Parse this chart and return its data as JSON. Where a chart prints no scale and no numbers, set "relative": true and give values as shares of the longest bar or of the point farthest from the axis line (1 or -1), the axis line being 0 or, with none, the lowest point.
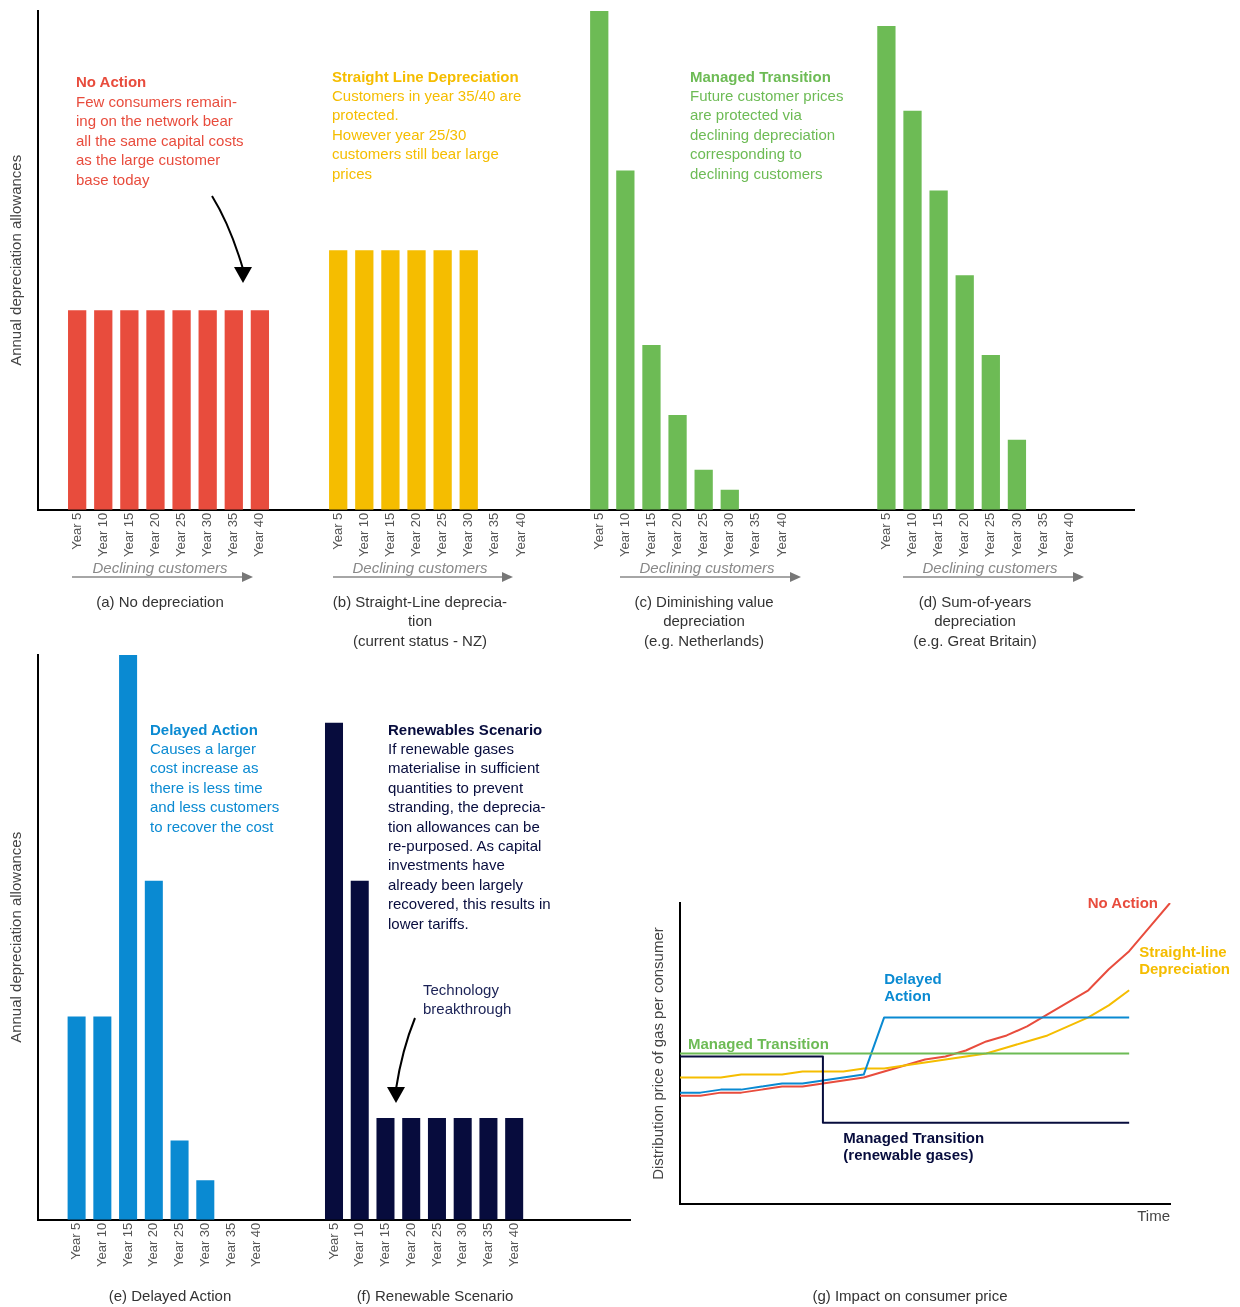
{
  "chart_data": [
    {
      "type": "bar",
      "relative": true,
      "ylabel": "Annual depreciation allowances",
      "tick_labels": "x",
      "legend": false,
      "categories": [
        null,
        "Year 5",
        "Year 10",
        "Year 15",
        "Year 20",
        "Year 25",
        "Year 30",
        "Year 35",
        "Year 40",
        null,
        null,
        "Year 5",
        "Year 10",
        "Year 15",
        "Year 20",
        "Year 25",
        "Year 30",
        "Year 35",
        "Year 40",
        null,
        null,
        "Year 5",
        "Year 10",
        "Year 15",
        "Year 20",
        "Year 25",
        "Year 30",
        "Year 35",
        "Year 40",
        null,
        null,
        null,
        "Year 5",
        "Year 10",
        "Year 15",
        "Year 20",
        "Year 25",
        "Year 30",
        "Year 35",
        "Year 40",
        null,
        null
      ],
      "values": [
        null,
        0.4,
        0.4,
        0.4,
        0.4,
        0.4,
        0.4,
        0.4,
        0.4,
        null,
        null,
        0.52,
        0.52,
        0.52,
        0.52,
        0.52,
        0.52,
        0,
        0,
        null,
        null,
        1,
        0.68,
        0.33,
        0.19,
        0.08,
        0.04,
        0,
        0,
        null,
        null,
        null,
        0.97,
        0.8,
        0.64,
        0.47,
        0.31,
        0.14,
        0,
        0,
        null,
        null
      ],
      "colors": [
        null,
        "#e84c3d",
        "#e84c3d",
        "#e84c3d",
        "#e84c3d",
        "#e84c3d",
        "#e84c3d",
        "#e84c3d",
        "#e84c3d",
        null,
        null,
        "#f5bd00",
        "#f5bd00",
        "#f5bd00",
        "#f5bd00",
        "#f5bd00",
        "#f5bd00",
        "#f5bd00",
        "#f5bd00",
        null,
        null,
        "#6dbb55",
        "#6dbb55",
        "#6dbb55",
        "#6dbb55",
        "#6dbb55",
        "#6dbb55",
        "#6dbb55",
        "#6dbb55",
        null,
        null,
        null,
        "#6dbb55",
        "#6dbb55",
        "#6dbb55",
        "#6dbb55",
        "#6dbb55",
        "#6dbb55",
        "#6dbb55",
        "#6dbb55",
        null,
        null
      ],
      "annotations": [
        "No Action",
        "Few consumers remain-\ning on the network bear\nall the same capital costs\nas the large customer\nbase today",
        "Straight Line Depreciation",
        "Customers in year 35/40 are\nprotected.\nHowever year 25/30\ncustomers still bear large\nprices",
        "Managed Transition",
        "Future customer prices\nare protected via\ndeclining depreciation\ncorresponding to\ndeclining customers",
        "Declining customers",
        "Declining customers",
        "Declining customers",
        "Declining customers",
        "(a) No depreciation",
        "(b) Straight-Line deprecia-\ntion\n(current status - NZ)",
        "(c) Diminishing value\ndepreciation\n(e.g. Netherlands)",
        "(d) Sum-of-years\ndepreciation\n(e.g. Great Britain)"
      ]
    },
    {
      "type": "bar",
      "relative": true,
      "ylabel": "Annual depreciation allowances",
      "tick_labels": "x",
      "legend": false,
      "categories": [
        null,
        "Year 5",
        "Year 10",
        "Year 15",
        "Year 20",
        "Year 25",
        "Year 30",
        "Year 35",
        "Year 40",
        null,
        null,
        "Year 5",
        "Year 10",
        "Year 15",
        "Year 20",
        "Year 25",
        "Year 30",
        "Year 35",
        "Year 40",
        null,
        null,
        null,
        null
      ],
      "values": [
        null,
        0.36,
        0.36,
        1,
        0.6,
        0.14,
        0.07,
        0,
        0,
        null,
        null,
        0.88,
        0.6,
        0.18,
        0.18,
        0.18,
        0.18,
        0.18,
        0.18,
        null,
        null,
        null,
        null
      ],
      "colors": [
        null,
        "#0a8ad2",
        "#0a8ad2",
        "#0a8ad2",
        "#0a8ad2",
        "#0a8ad2",
        "#0a8ad2",
        "#0a8ad2",
        "#0a8ad2",
        null,
        null,
        "#070c3d",
        "#070c3d",
        "#070c3d",
        "#070c3d",
        "#070c3d",
        "#070c3d",
        "#070c3d",
        "#070c3d",
        null,
        null,
        null,
        null
      ],
      "annotations": [
        "Delayed Action",
        "Causes a larger\ncost increase as\nthere is less time\nand less customers\nto recover the cost",
        "Renewables Scenario",
        "If renewable gases\nmaterialise in sufficient\nquantities to prevent\nstranding, the deprecia-\ntion allowances can be\nre-purposed. As capital\ninvestments have\nalready been largely\nrecovered, this results in\nlower tariffs.",
        "Technology\nbreakthrough",
        "(e) Delayed Action",
        "(f) Renewable Scenario"
      ]
    },
    {
      "type": "line",
      "relative": true,
      "ylabel": "Distribution price of gas per consumer",
      "xlabel": "Time",
      "tick_labels": false,
      "legend": false,
      "categories": [
        null,
        null,
        null,
        null,
        null,
        null,
        null,
        null,
        null,
        null,
        null,
        null,
        null,
        null,
        null,
        null,
        null,
        null,
        null,
        null,
        null,
        null,
        null,
        null,
        null
      ],
      "series": [
        {
          "name": "No Action",
          "color": "#e84c3d",
          "values": [
            0.36,
            0.36,
            0.37,
            0.37,
            0.38,
            0.39,
            0.39,
            0.4,
            0.41,
            0.42,
            0.44,
            0.46,
            0.48,
            0.49,
            0.51,
            0.54,
            0.56,
            0.59,
            0.63,
            0.67,
            0.71,
            0.78,
            0.84,
            0.92,
            1
          ]
        },
        {
          "name": "Straight-line Depreciation",
          "color": "#f5bd00",
          "values": [
            0.42,
            0.42,
            0.42,
            0.43,
            0.43,
            0.43,
            0.44,
            0.44,
            0.44,
            0.45,
            0.45,
            0.46,
            0.47,
            0.48,
            0.49,
            0.5,
            0.52,
            0.54,
            0.56,
            0.59,
            0.62,
            0.66,
            0.71,
            null,
            null
          ]
        },
        {
          "name": "Delayed Action",
          "color": "#0a8ad2",
          "values": [
            0.37,
            0.37,
            0.38,
            0.38,
            0.39,
            0.4,
            0.4,
            0.41,
            0.42,
            0.43,
            0.62,
            0.62,
            0.62,
            0.62,
            0.62,
            0.62,
            0.62,
            0.62,
            0.62,
            0.62,
            0.62,
            0.62,
            0.62,
            null,
            null
          ]
        },
        {
          "name": "Managed Transition",
          "color": "#6dbb55",
          "values": [
            0.5,
            0.5,
            0.5,
            0.5,
            0.5,
            0.5,
            0.5,
            0.5,
            0.5,
            0.5,
            0.5,
            0.5,
            0.5,
            0.5,
            0.5,
            0.5,
            0.5,
            0.5,
            0.5,
            0.5,
            0.5,
            0.5,
            0.5,
            null,
            null
          ]
        },
        {
          "name": "Managed Transition (renewable gases)",
          "type": "step",
          "color": "#070c3d",
          "values": [
            0.49,
            0.49,
            0.49,
            0.49,
            0.49,
            0.49,
            0.49,
            0.49,
            0.27,
            0.27,
            0.27,
            0.27,
            0.27,
            0.27,
            0.27,
            0.27,
            0.27,
            0.27,
            0.27,
            0.27,
            0.27,
            0.27,
            0.27,
            null,
            null
          ]
        }
      ],
      "annotations": [
        "(g) Impact on consumer price"
      ]
    }
  ]
}
